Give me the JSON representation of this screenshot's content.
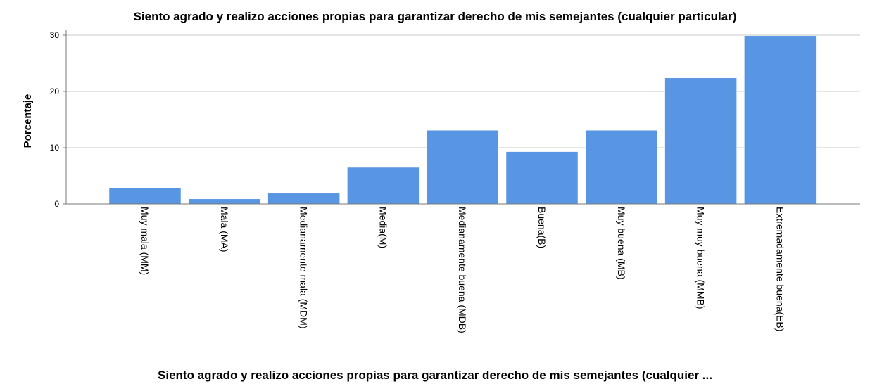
{
  "chart_data": {
    "type": "bar",
    "title": "Siento agrado y realizo acciones propias para garantizar derecho de mis semejantes (cualquier particular)",
    "xlabel": "Siento agrado y realizo acciones propias para garantizar derecho de mis semejantes (cualquier ...",
    "ylabel": "Porcentaje",
    "categories": [
      "Muy mala (MM)",
      "Mala (MA)",
      "Medianamente mala (MDM)",
      "Media(M)",
      "Medianamente buena (MDB)",
      "Buena(B)",
      "Muy buena (MB)",
      "Muy muy buena (MMB)",
      "Extremadamente buena(EB)"
    ],
    "values": [
      2.8,
      0.9,
      1.9,
      6.5,
      13.1,
      9.3,
      13.1,
      22.4,
      29.9
    ],
    "ylim": [
      0,
      30
    ],
    "yticks": [
      0,
      10,
      20,
      30
    ],
    "grid": true,
    "bar_color": "#5895e3",
    "grid_color": "#c8c8c8",
    "axis_color": "#7a7a7a"
  }
}
